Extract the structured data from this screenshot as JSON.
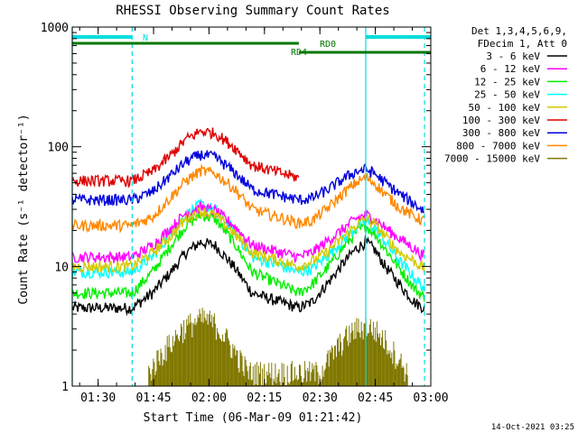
{
  "chart_data": {
    "type": "line",
    "title": "RHESSI Observing Summary Count Rates",
    "xlabel": "Start Time (06-Mar-09 01:21:42)",
    "ylabel": "Count Rate (s⁻¹ detector⁻¹)",
    "yscale": "log",
    "ylim": [
      1,
      1000
    ],
    "x_ticks": [
      "01:30",
      "01:45",
      "02:00",
      "02:15",
      "02:30",
      "02:45",
      "03:00"
    ],
    "y_ticks": [
      "1",
      "10",
      "100",
      "1000"
    ],
    "x_range_minutes": [
      1.3,
      98.3
    ],
    "legend": {
      "placement": "right",
      "header": [
        "Det 1,3,4,5,6,9,",
        "FDecim 1, Att 0"
      ],
      "entries": [
        {
          "name": "3 - 6 keV",
          "color": "#000000"
        },
        {
          "name": "6 - 12 keV",
          "color": "#ff00ff"
        },
        {
          "name": "12 - 25 keV",
          "color": "#00ee00"
        },
        {
          "name": "25 - 50 keV",
          "color": "#00ffff"
        },
        {
          "name": "50 - 100 keV",
          "color": "#d4c800"
        },
        {
          "name": "100 - 300 keV",
          "color": "#dd0000"
        },
        {
          "name": "300 - 800 keV",
          "color": "#0000dd"
        },
        {
          "name": "800 - 7000 keV",
          "color": "#ff8800"
        },
        {
          "name": "7000 - 15000 keV",
          "color": "#807800"
        }
      ]
    },
    "flags": {
      "N": {
        "label": "N",
        "color": "#00dddd",
        "segments": [
          [
            1.3,
            17.5
          ],
          [
            80.7,
            98.3
          ]
        ]
      },
      "RD0": {
        "label": "RD0",
        "color": "#007700",
        "segments": [
          [
            1.3,
            62.6
          ]
        ]
      },
      "RD4": {
        "label": "RD4",
        "color": "#007700",
        "segments": [
          [
            62.6,
            98.3
          ]
        ]
      }
    },
    "vlines_solid": [
      1.3,
      80.7
    ],
    "vlines_dashed": [
      17.5,
      96.6
    ],
    "series": [
      {
        "name": "3 - 6 keV",
        "color": "#000000",
        "x": [
          1.3,
          17.5,
          23,
          28,
          32,
          36,
          40,
          45,
          50,
          62.6,
          66,
          70,
          75,
          78,
          80.7,
          83,
          86,
          90,
          94,
          96.6
        ],
        "y": [
          4.5,
          4.5,
          6,
          9,
          13,
          16,
          15,
          10,
          6,
          4.5,
          5,
          7,
          11,
          14,
          16,
          14,
          10,
          7,
          5,
          4.5
        ]
      },
      {
        "name": "12 - 25 keV",
        "color": "#00ee00",
        "x": [
          1.3,
          17.5,
          23,
          28,
          32,
          36,
          40,
          45,
          50,
          62.6,
          66,
          70,
          75,
          78,
          80.7,
          83,
          86,
          90,
          94,
          96.6
        ],
        "y": [
          6,
          6,
          9,
          15,
          22,
          27,
          25,
          16,
          9,
          6,
          7,
          9.5,
          15,
          19,
          22,
          19,
          14,
          9.5,
          6.5,
          5.5
        ]
      },
      {
        "name": "25 - 50 keV",
        "color": "#00ffff",
        "x": [
          1.3,
          17.5,
          23,
          28,
          32,
          36,
          40,
          45,
          50,
          62.6,
          66,
          70,
          75,
          78,
          80.7,
          83,
          86,
          90,
          94,
          96.6
        ],
        "y": [
          9,
          9,
          12,
          19,
          27,
          33,
          30,
          20,
          12,
          9,
          9.5,
          12,
          17,
          21,
          24,
          21,
          16,
          11,
          8,
          6.5
        ]
      },
      {
        "name": "6 - 12 keV",
        "color": "#ff00ff",
        "x": [
          1.3,
          17.5,
          23,
          28,
          32,
          36,
          40,
          45,
          50,
          62.6,
          66,
          70,
          75,
          78,
          80.7,
          83,
          86,
          90,
          94,
          96.6
        ],
        "y": [
          12,
          12,
          15,
          21,
          28,
          31,
          29,
          22,
          15,
          12,
          13,
          16,
          21,
          25,
          27,
          25,
          21,
          17,
          14,
          12
        ]
      },
      {
        "name": "50 - 100 keV",
        "color": "#d4c800",
        "x": [
          1.3,
          17.5,
          23,
          28,
          32,
          36,
          40,
          45,
          50,
          62.6,
          66,
          70,
          75,
          78,
          80.7,
          83,
          86,
          90,
          94,
          96.6
        ],
        "y": [
          10,
          10,
          13,
          18,
          25,
          29,
          27,
          19,
          13,
          10,
          11,
          13,
          18,
          22,
          25,
          23,
          18,
          13,
          11,
          9.5
        ]
      },
      {
        "name": "800 - 7000 keV",
        "color": "#ff8800",
        "x": [
          1.3,
          17.5,
          23,
          28,
          32,
          36,
          40,
          45,
          50,
          62.6,
          66,
          70,
          75,
          78,
          80.7,
          83,
          86,
          90,
          94,
          96.6
        ],
        "y": [
          22,
          22,
          26,
          38,
          52,
          63,
          60,
          45,
          30,
          23,
          24,
          30,
          42,
          50,
          55,
          50,
          40,
          31,
          26,
          24
        ]
      },
      {
        "name": "300 - 800 keV",
        "color": "#0000dd",
        "x": [
          1.3,
          17.5,
          23,
          28,
          32,
          36,
          40,
          45,
          50,
          62.6,
          66,
          70,
          75,
          78,
          80.7,
          83,
          86,
          90,
          94,
          96.6
        ],
        "y": [
          36,
          36,
          42,
          58,
          75,
          86,
          82,
          62,
          44,
          36,
          37,
          43,
          55,
          62,
          65,
          60,
          50,
          40,
          33,
          29
        ]
      },
      {
        "name": "100 - 300 keV",
        "color": "#dd0000",
        "x": [
          1.3,
          17.5,
          23,
          28,
          32,
          36,
          40,
          45,
          50,
          62.6
        ],
        "y": [
          52,
          52,
          62,
          85,
          115,
          135,
          130,
          100,
          70,
          55
        ]
      },
      {
        "name": "7000 - 15000 keV",
        "color": "#807800",
        "x": [
          22,
          25,
          28,
          31,
          34,
          37,
          40,
          43,
          46,
          49,
          68,
          72,
          75,
          78,
          80.7,
          83,
          86,
          89,
          92
        ],
        "y": [
          1.3,
          1.8,
          2.3,
          3.0,
          3.4,
          3.7,
          3.3,
          2.5,
          1.8,
          1.3,
          1.3,
          1.9,
          2.5,
          3.0,
          3.2,
          3.0,
          2.4,
          1.8,
          1.3
        ]
      }
    ],
    "footer_timestamp": "14-Oct-2021 03:25"
  }
}
